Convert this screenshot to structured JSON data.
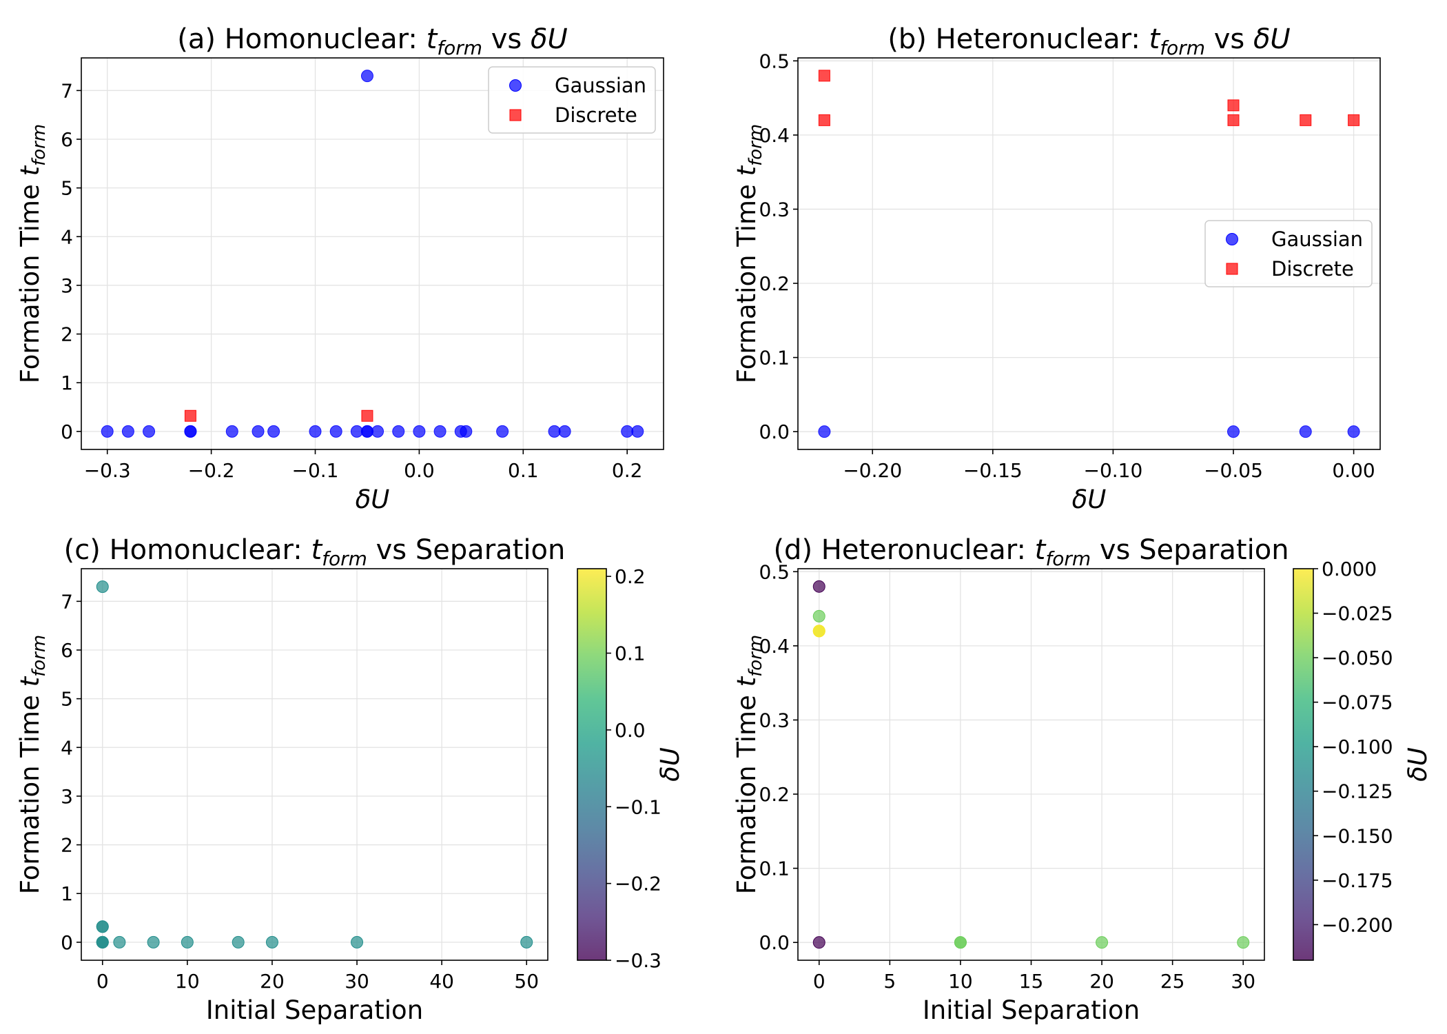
{
  "chart_data": [
    {
      "id": "a",
      "type": "scatter",
      "title": "(a) Homonuclear: t_form vs δU",
      "title_prefix": "(a) Homonuclear: ",
      "xlabel": "δU",
      "ylabel_main": "Formation Time ",
      "ylabel_var": "t",
      "ylabel_sub": "form",
      "xlim": [
        -0.325,
        0.235
      ],
      "ylim": [
        -0.37,
        7.67
      ],
      "xticks": [
        -0.3,
        -0.2,
        -0.1,
        0.0,
        0.1,
        0.2
      ],
      "xtick_labels": [
        "−0.3",
        "−0.2",
        "−0.1",
        "0.0",
        "0.1",
        "0.2"
      ],
      "yticks": [
        0,
        1,
        2,
        3,
        4,
        5,
        6,
        7
      ],
      "ytick_labels": [
        "0",
        "1",
        "2",
        "3",
        "4",
        "5",
        "6",
        "7"
      ],
      "grid": true,
      "legend": "top-right",
      "series": [
        {
          "name": "Gaussian",
          "marker": "circle",
          "color": "#0000ff",
          "x": [
            -0.3,
            -0.28,
            -0.26,
            -0.22,
            -0.22,
            -0.18,
            -0.155,
            -0.14,
            -0.1,
            -0.08,
            -0.06,
            -0.05,
            -0.05,
            -0.04,
            -0.02,
            0.0,
            0.02,
            0.04,
            0.045,
            0.08,
            0.13,
            0.14,
            0.2,
            0.21,
            -0.05
          ],
          "y": [
            0,
            0,
            0,
            0,
            0,
            0,
            0,
            0,
            0,
            0,
            0,
            0,
            0,
            0,
            0,
            0,
            0,
            0,
            0,
            0,
            0,
            0,
            0,
            0,
            7.3
          ]
        },
        {
          "name": "Discrete",
          "marker": "square",
          "color": "#ff0000",
          "x": [
            -0.22,
            -0.05
          ],
          "y": [
            0.32,
            0.32
          ]
        }
      ]
    },
    {
      "id": "b",
      "type": "scatter",
      "title": "(b) Heteronuclear: t_form vs δU",
      "title_prefix": "(b) Heteronuclear: ",
      "xlabel": "δU",
      "ylabel_main": "Formation Time ",
      "ylabel_var": "t",
      "ylabel_sub": "form",
      "xlim": [
        -0.231,
        0.011
      ],
      "ylim": [
        -0.024,
        0.504
      ],
      "xticks": [
        -0.2,
        -0.15,
        -0.1,
        -0.05,
        0.0
      ],
      "xtick_labels": [
        "−0.20",
        "−0.15",
        "−0.10",
        "−0.05",
        "0.00"
      ],
      "yticks": [
        0.0,
        0.1,
        0.2,
        0.3,
        0.4,
        0.5
      ],
      "ytick_labels": [
        "0.0",
        "0.1",
        "0.2",
        "0.3",
        "0.4",
        "0.5"
      ],
      "grid": true,
      "legend": "center-right",
      "series": [
        {
          "name": "Gaussian",
          "marker": "circle",
          "color": "#0000ff",
          "x": [
            -0.22,
            -0.05,
            -0.02,
            0.0
          ],
          "y": [
            0,
            0,
            0,
            0
          ]
        },
        {
          "name": "Discrete",
          "marker": "square",
          "color": "#ff0000",
          "x": [
            -0.22,
            -0.22,
            -0.05,
            -0.05,
            -0.02,
            0.0
          ],
          "y": [
            0.48,
            0.42,
            0.44,
            0.42,
            0.42,
            0.42
          ]
        }
      ]
    },
    {
      "id": "c",
      "type": "scatter",
      "title": "(c) Homonuclear: t_form vs Separation",
      "title_prefix": "(c) Homonuclear: ",
      "title_suffix": " vs Separation",
      "xlabel": "Initial Separation",
      "ylabel_main": "Formation Time ",
      "ylabel_var": "t",
      "ylabel_sub": "form",
      "xlim": [
        -2.5,
        52.5
      ],
      "ylim": [
        -0.37,
        7.67
      ],
      "xticks": [
        0,
        10,
        20,
        30,
        40,
        50
      ],
      "xtick_labels": [
        "0",
        "10",
        "20",
        "30",
        "40",
        "50"
      ],
      "yticks": [
        0,
        1,
        2,
        3,
        4,
        5,
        6,
        7
      ],
      "ytick_labels": [
        "0",
        "1",
        "2",
        "3",
        "4",
        "5",
        "6",
        "7"
      ],
      "grid": true,
      "colorbar": {
        "label": "δU",
        "range": [
          -0.3,
          0.21
        ],
        "ticks": [
          -0.3,
          -0.2,
          -0.1,
          0.0,
          0.1,
          0.2
        ],
        "tick_labels": [
          "−0.3",
          "−0.2",
          "−0.1",
          "0.0",
          "0.1",
          "0.2"
        ]
      },
      "points": {
        "x": [
          0,
          0,
          0,
          0,
          0,
          2,
          6,
          10,
          16,
          20,
          30,
          50,
          0
        ],
        "y": [
          0,
          0,
          0,
          0.32,
          0.32,
          0,
          0,
          0,
          0,
          0,
          0,
          0,
          7.3
        ],
        "c": [
          -0.05,
          -0.05,
          -0.05,
          -0.05,
          -0.05,
          -0.05,
          -0.05,
          -0.05,
          -0.05,
          -0.05,
          -0.05,
          -0.05,
          -0.05
        ]
      }
    },
    {
      "id": "d",
      "type": "scatter",
      "title": "(d) Heteronuclear: t_form vs Separation",
      "title_prefix": "(d) Heteronuclear: ",
      "title_suffix": " vs Separation",
      "xlabel": "Initial Separation",
      "ylabel_main": "Formation Time ",
      "ylabel_var": "t",
      "ylabel_sub": "form",
      "xlim": [
        -1.5,
        31.5
      ],
      "ylim": [
        -0.024,
        0.504
      ],
      "xticks": [
        0,
        5,
        10,
        15,
        20,
        25,
        30
      ],
      "xtick_labels": [
        "0",
        "5",
        "10",
        "15",
        "20",
        "25",
        "30"
      ],
      "yticks": [
        0.0,
        0.1,
        0.2,
        0.3,
        0.4,
        0.5
      ],
      "ytick_labels": [
        "0.0",
        "0.1",
        "0.2",
        "0.3",
        "0.4",
        "0.5"
      ],
      "grid": true,
      "colorbar": {
        "label": "δU",
        "range": [
          -0.22,
          0.0
        ],
        "ticks": [
          -0.2,
          -0.175,
          -0.15,
          -0.125,
          -0.1,
          -0.075,
          -0.05,
          -0.025,
          0.0
        ],
        "tick_labels": [
          "−0.200",
          "−0.175",
          "−0.150",
          "−0.125",
          "−0.100",
          "−0.075",
          "−0.050",
          "−0.025",
          "0.000"
        ]
      },
      "points": {
        "x": [
          0,
          0,
          0,
          0,
          0,
          10,
          10,
          20,
          30
        ],
        "y": [
          0.48,
          0.44,
          0.42,
          0.42,
          0,
          0,
          0,
          0,
          0
        ],
        "c": [
          -0.22,
          -0.05,
          -0.02,
          0.0,
          -0.22,
          -0.05,
          -0.05,
          -0.05,
          -0.05
        ]
      }
    }
  ],
  "colors": {
    "viridis_stops": [
      "#440154",
      "#482878",
      "#3e4989",
      "#31688e",
      "#26828e",
      "#1f9e89",
      "#35b779",
      "#6ece58",
      "#b5de2b",
      "#fde725"
    ]
  }
}
